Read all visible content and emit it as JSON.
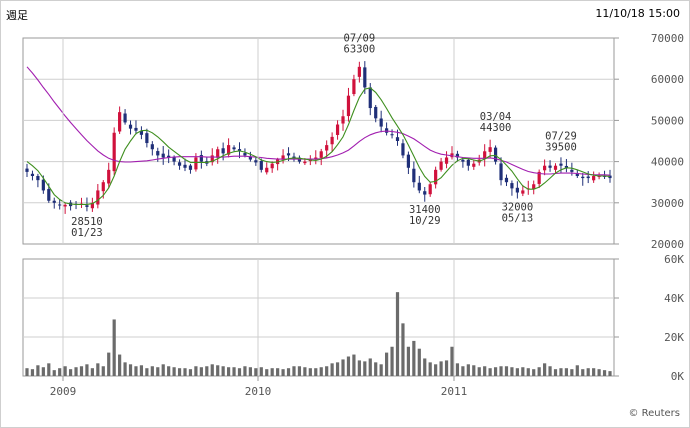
{
  "header": {
    "period_label": "週足",
    "timestamp": "11/10/18 15:00"
  },
  "credit": "© Reuters",
  "colors": {
    "up": "#d0113c",
    "down": "#1f2f78",
    "ma_short": "#3f8f1f",
    "ma_long": "#a21fb0",
    "volume": "#6b6b6b",
    "grid": "#cfcfcf",
    "border": "#9a9a9a"
  },
  "chart_data": [
    {
      "type": "candlestick",
      "title": "",
      "y_ticks": [
        "70000",
        "60000",
        "50000",
        "40000",
        "30000",
        "20000"
      ],
      "ylim": [
        20000,
        70000
      ],
      "x_ticks": [
        "2009",
        "2010",
        "2011"
      ],
      "period": [
        "2008-10",
        "2011-10"
      ],
      "grid": true,
      "annotations": [
        {
          "date": "01/23",
          "value": "28510",
          "kind": "low"
        },
        {
          "date": "07/09",
          "value": "63300",
          "kind": "high"
        },
        {
          "date": "10/29",
          "value": "31400",
          "kind": "low"
        },
        {
          "date": "03/04",
          "value": "44300",
          "kind": "high"
        },
        {
          "date": "05/13",
          "value": "32000",
          "kind": "low"
        },
        {
          "date": "07/29",
          "value": "39500",
          "kind": "high"
        }
      ],
      "close_trend": [
        37500,
        36500,
        35500,
        33000,
        30500,
        30000,
        29500,
        29500,
        29200,
        29500,
        29800,
        29000,
        30000,
        33000,
        35000,
        38000,
        47000,
        52000,
        49500,
        48000,
        47500,
        46500,
        44500,
        43000,
        41500,
        41000,
        41000,
        40000,
        39000,
        38500,
        38000,
        41000,
        40000,
        39500,
        41500,
        43000,
        42000,
        44000,
        43000,
        42500,
        41500,
        40500,
        39800,
        38000,
        38500,
        39500,
        40500,
        41500,
        41500,
        40500,
        40000,
        40000,
        40500,
        41000,
        42500,
        44000,
        46000,
        49000,
        51000,
        56000,
        60000,
        63000,
        58000,
        53000,
        50500,
        48500,
        47000,
        46500,
        45000,
        41500,
        38500,
        35000,
        33000,
        32000,
        34500,
        38000,
        40000,
        41000,
        42000,
        41000,
        40000,
        39000,
        39500,
        40500,
        42500,
        43500,
        40000,
        35500,
        35000,
        33500,
        32500,
        33000,
        33500,
        34500,
        37500,
        39000,
        38500,
        39000,
        39000,
        38500,
        37500,
        36500,
        36000,
        36000,
        36500,
        36500,
        36500,
        36000
      ],
      "ma_short": [
        40000,
        39000,
        37800,
        36000,
        34000,
        32000,
        30800,
        30000,
        29700,
        29600,
        29600,
        29600,
        29800,
        30600,
        31800,
        33600,
        36500,
        40000,
        43000,
        45000,
        46800,
        47500,
        47600,
        47000,
        46000,
        44800,
        43500,
        42500,
        41500,
        40500,
        39800,
        39800,
        39800,
        39800,
        40100,
        40700,
        41400,
        42000,
        42400,
        42600,
        42300,
        41800,
        41200,
        40400,
        40000,
        39800,
        39900,
        40300,
        40700,
        40900,
        40800,
        40600,
        40400,
        40300,
        40600,
        41300,
        42400,
        44100,
        46000,
        49000,
        52400,
        55600,
        57600,
        57900,
        56800,
        55000,
        52900,
        50600,
        48600,
        46500,
        44000,
        41300,
        38600,
        36400,
        35000,
        35200,
        36100,
        37600,
        39100,
        40200,
        40800,
        40700,
        40400,
        40100,
        40600,
        41400,
        41500,
        40500,
        39100,
        37700,
        35800,
        34100,
        33300,
        33300,
        33800,
        34800,
        36000,
        37200,
        38000,
        38500,
        38400,
        38000,
        37500,
        37000,
        36700,
        36500,
        36500,
        36400
      ],
      "ma_long": [
        63000,
        61500,
        59800,
        58000,
        56300,
        54500,
        52800,
        51100,
        49500,
        48000,
        46500,
        45100,
        43800,
        42600,
        41600,
        40800,
        40300,
        40000,
        39900,
        39900,
        40000,
        40100,
        40200,
        40400,
        40600,
        40800,
        41000,
        41100,
        41200,
        41200,
        41200,
        41200,
        41200,
        41100,
        41100,
        41100,
        41100,
        41200,
        41300,
        41300,
        41300,
        41200,
        41100,
        41000,
        40800,
        40700,
        40600,
        40600,
        40600,
        40600,
        40600,
        40600,
        40600,
        40600,
        40700,
        40900,
        41200,
        41600,
        42100,
        42800,
        43800,
        44900,
        45800,
        46500,
        47000,
        47300,
        47400,
        47300,
        47100,
        46800,
        46200,
        45500,
        44600,
        43700,
        42800,
        42200,
        41800,
        41600,
        41400,
        41200,
        41000,
        40900,
        40800,
        40800,
        40800,
        40900,
        40700,
        40300,
        39900,
        39300,
        38700,
        38100,
        37600,
        37300,
        37100,
        37000,
        37000,
        37100,
        37200,
        37200,
        37200,
        37100,
        37000,
        36900,
        36800,
        36800,
        36800,
        36700
      ],
      "volume_ylim": [
        0,
        60000
      ],
      "volume_ticks": [
        "60K",
        "40K",
        "20K",
        "0K"
      ],
      "volume": [
        4000,
        3500,
        5500,
        4500,
        6500,
        3000,
        4000,
        5000,
        3500,
        4500,
        5000,
        6000,
        4000,
        6500,
        5000,
        12000,
        29000,
        11000,
        7000,
        6000,
        5000,
        5500,
        4000,
        5000,
        4500,
        6000,
        5000,
        4500,
        4000,
        4000,
        3500,
        5000,
        4500,
        5000,
        6000,
        5500,
        5000,
        4500,
        4500,
        4000,
        5000,
        4500,
        4000,
        4500,
        3500,
        4000,
        4000,
        3500,
        4000,
        5000,
        5000,
        4500,
        4000,
        4000,
        4500,
        5000,
        6500,
        7000,
        8500,
        10000,
        11000,
        8000,
        7500,
        9000,
        7000,
        6000,
        12000,
        15000,
        43000,
        27000,
        15000,
        18000,
        14000,
        9000,
        7000,
        6000,
        7500,
        8000,
        15000,
        6500,
        5000,
        6000,
        5500,
        4500,
        5000,
        4000,
        4500,
        5000,
        5000,
        4500,
        4000,
        4500,
        4000,
        3500,
        4500,
        6500,
        5000,
        3500,
        4000,
        4000,
        3500,
        5500,
        3500,
        4000,
        4000,
        3500,
        3000,
        2500
      ]
    }
  ]
}
